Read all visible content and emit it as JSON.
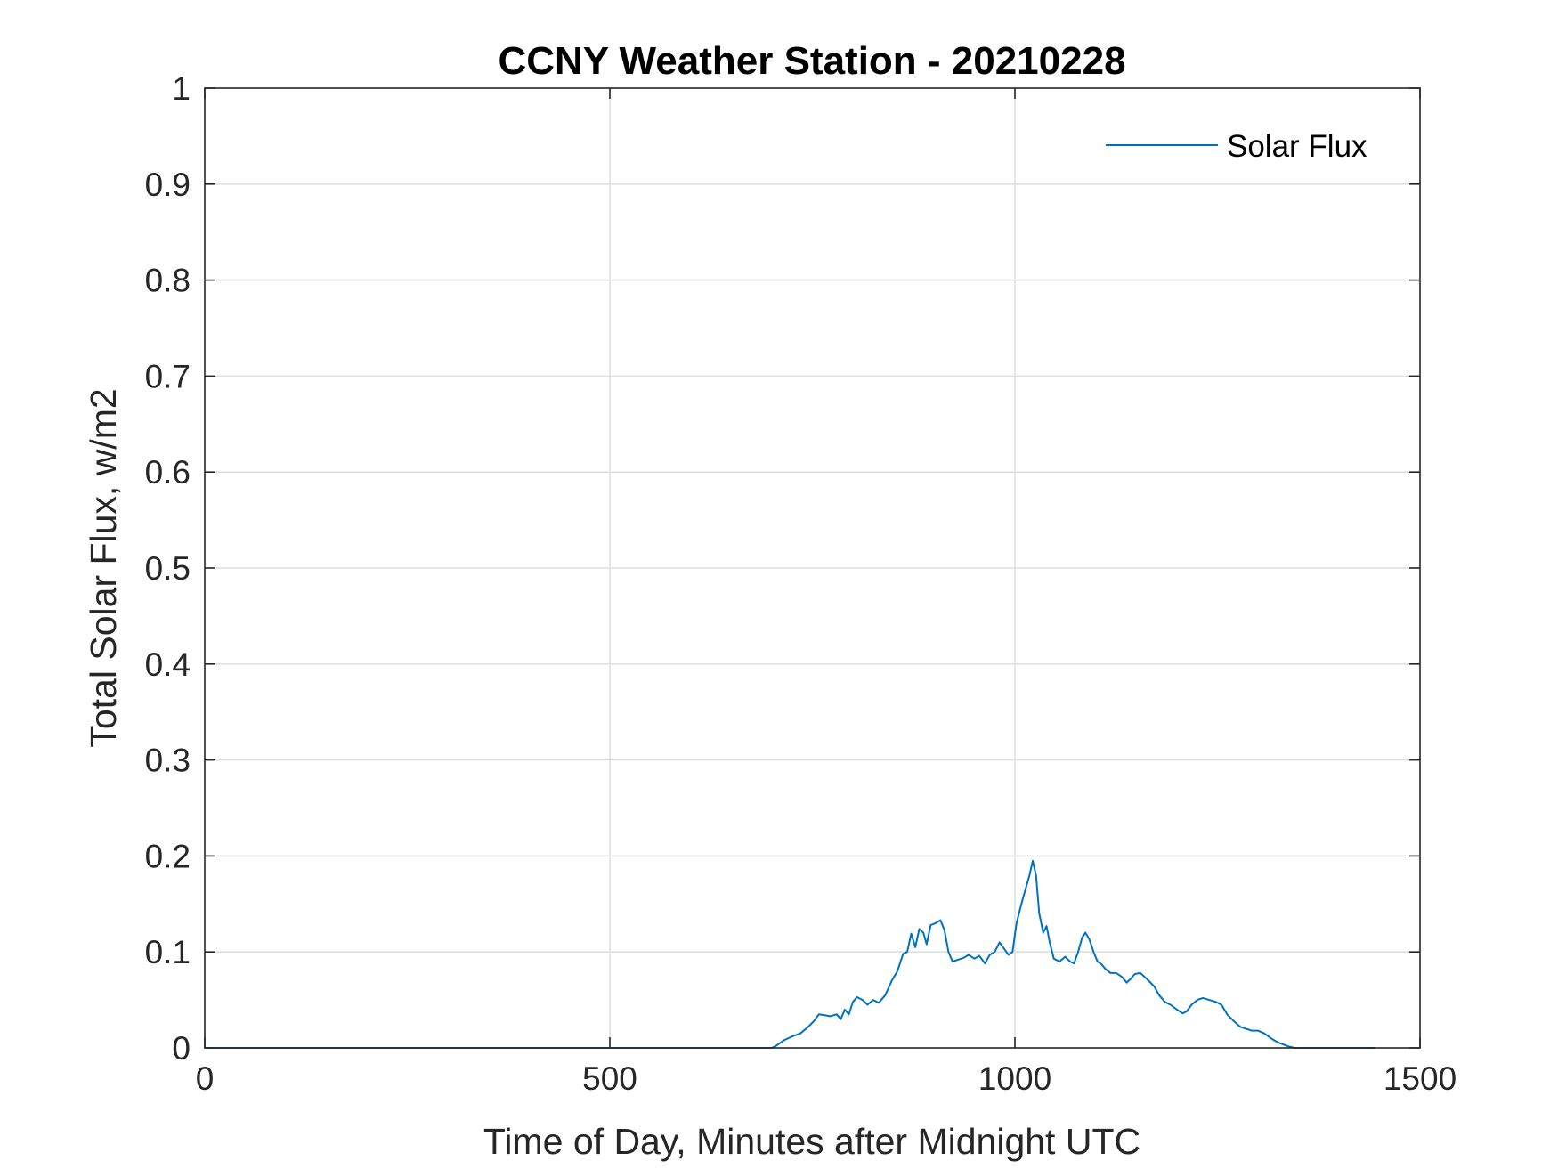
{
  "chart_data": {
    "type": "line",
    "title": "CCNY Weather Station - 20210228",
    "xlabel": "Time of Day, Minutes after Midnight UTC",
    "ylabel": "Total Solar Flux, w/m2",
    "xlim": [
      0,
      1500
    ],
    "ylim": [
      0,
      1
    ],
    "xticks": [
      0,
      500,
      1000,
      1500
    ],
    "xtick_labels": [
      "0",
      "500",
      "1000",
      "1500"
    ],
    "yticks": [
      0,
      0.1,
      0.2,
      0.3,
      0.4,
      0.5,
      0.6,
      0.7,
      0.8,
      0.9,
      1
    ],
    "ytick_labels": [
      "0",
      "0.1",
      "0.2",
      "0.3",
      "0.4",
      "0.5",
      "0.6",
      "0.7",
      "0.8",
      "0.9",
      "1"
    ],
    "grid": true,
    "legend_location": "top-right",
    "series": [
      {
        "name": "Solar Flux",
        "color": "#0072BD",
        "points": [
          [
            0,
            0
          ],
          [
            500,
            0
          ],
          [
            700,
            0
          ],
          [
            705,
            0.002
          ],
          [
            715,
            0.008
          ],
          [
            725,
            0.012
          ],
          [
            735,
            0.015
          ],
          [
            745,
            0.022
          ],
          [
            752,
            0.028
          ],
          [
            758,
            0.035
          ],
          [
            765,
            0.034
          ],
          [
            772,
            0.033
          ],
          [
            780,
            0.035
          ],
          [
            785,
            0.03
          ],
          [
            790,
            0.04
          ],
          [
            795,
            0.035
          ],
          [
            800,
            0.048
          ],
          [
            805,
            0.053
          ],
          [
            812,
            0.05
          ],
          [
            818,
            0.045
          ],
          [
            825,
            0.05
          ],
          [
            832,
            0.047
          ],
          [
            840,
            0.055
          ],
          [
            848,
            0.07
          ],
          [
            855,
            0.08
          ],
          [
            862,
            0.098
          ],
          [
            867,
            0.1
          ],
          [
            872,
            0.119
          ],
          [
            877,
            0.105
          ],
          [
            882,
            0.124
          ],
          [
            887,
            0.12
          ],
          [
            891,
            0.108
          ],
          [
            896,
            0.128
          ],
          [
            902,
            0.13
          ],
          [
            908,
            0.133
          ],
          [
            913,
            0.123
          ],
          [
            918,
            0.1
          ],
          [
            923,
            0.09
          ],
          [
            930,
            0.092
          ],
          [
            937,
            0.094
          ],
          [
            943,
            0.097
          ],
          [
            950,
            0.093
          ],
          [
            956,
            0.096
          ],
          [
            963,
            0.088
          ],
          [
            969,
            0.097
          ],
          [
            975,
            0.1
          ],
          [
            981,
            0.11
          ],
          [
            987,
            0.103
          ],
          [
            992,
            0.097
          ],
          [
            997,
            0.1
          ],
          [
            1002,
            0.13
          ],
          [
            1008,
            0.15
          ],
          [
            1013,
            0.165
          ],
          [
            1018,
            0.18
          ],
          [
            1022,
            0.195
          ],
          [
            1026,
            0.18
          ],
          [
            1030,
            0.14
          ],
          [
            1035,
            0.12
          ],
          [
            1039,
            0.127
          ],
          [
            1043,
            0.11
          ],
          [
            1048,
            0.093
          ],
          [
            1055,
            0.09
          ],
          [
            1062,
            0.095
          ],
          [
            1068,
            0.09
          ],
          [
            1073,
            0.088
          ],
          [
            1078,
            0.1
          ],
          [
            1083,
            0.115
          ],
          [
            1087,
            0.12
          ],
          [
            1092,
            0.113
          ],
          [
            1097,
            0.1
          ],
          [
            1102,
            0.09
          ],
          [
            1107,
            0.087
          ],
          [
            1112,
            0.082
          ],
          [
            1118,
            0.078
          ],
          [
            1125,
            0.078
          ],
          [
            1132,
            0.074
          ],
          [
            1138,
            0.068
          ],
          [
            1143,
            0.072
          ],
          [
            1148,
            0.077
          ],
          [
            1155,
            0.078
          ],
          [
            1160,
            0.074
          ],
          [
            1165,
            0.07
          ],
          [
            1172,
            0.064
          ],
          [
            1178,
            0.055
          ],
          [
            1185,
            0.048
          ],
          [
            1192,
            0.045
          ],
          [
            1200,
            0.04
          ],
          [
            1207,
            0.036
          ],
          [
            1212,
            0.038
          ],
          [
            1218,
            0.045
          ],
          [
            1225,
            0.05
          ],
          [
            1232,
            0.052
          ],
          [
            1240,
            0.05
          ],
          [
            1248,
            0.048
          ],
          [
            1255,
            0.045
          ],
          [
            1262,
            0.035
          ],
          [
            1270,
            0.028
          ],
          [
            1278,
            0.022
          ],
          [
            1285,
            0.02
          ],
          [
            1292,
            0.018
          ],
          [
            1300,
            0.018
          ],
          [
            1308,
            0.015
          ],
          [
            1316,
            0.01
          ],
          [
            1324,
            0.006
          ],
          [
            1330,
            0.004
          ],
          [
            1336,
            0.002
          ],
          [
            1340,
            0.001
          ],
          [
            1345,
            0
          ],
          [
            1400,
            0
          ],
          [
            1445,
            0
          ]
        ]
      }
    ]
  }
}
